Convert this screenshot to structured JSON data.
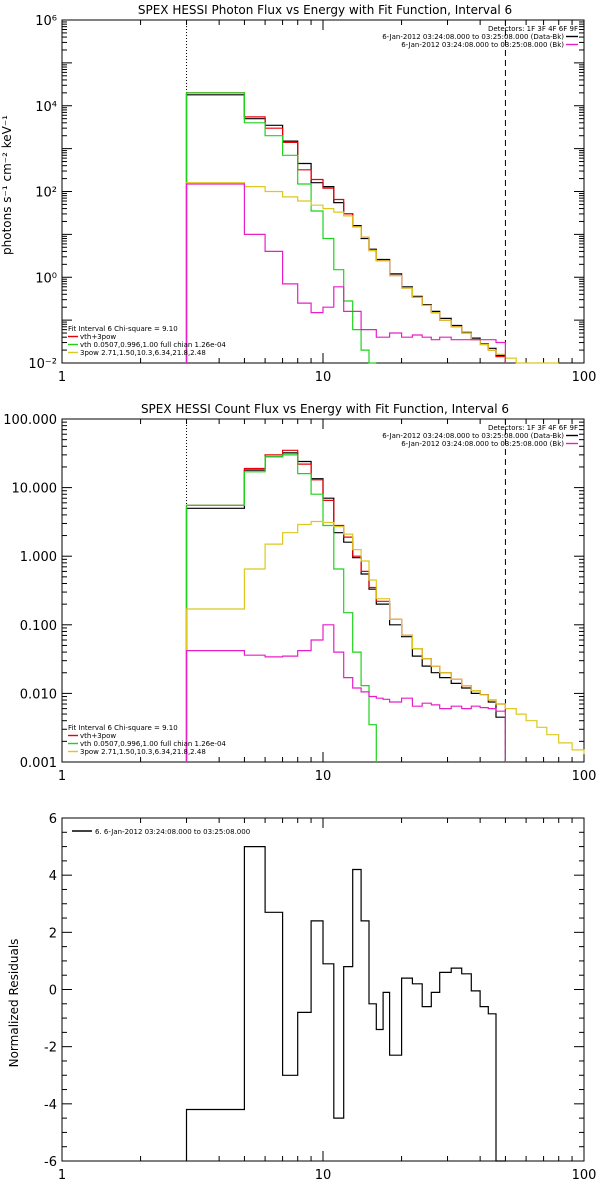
{
  "chart_data": [
    {
      "type": "line",
      "title": "SPEX HESSI Photon Flux vs Energy with Fit Function, Interval 6",
      "ylabel": "photons s⁻¹ cm⁻² keV⁻¹",
      "xscale": "log",
      "yscale": "log",
      "xlim": [
        1,
        100
      ],
      "ylim": [
        0.01,
        1000000
      ],
      "xticks": [
        {
          "v": 1,
          "label": "1"
        },
        {
          "v": 10,
          "label": "10"
        },
        {
          "v": 100,
          "label": "100"
        }
      ],
      "yticks": [
        {
          "v": 0.01,
          "label": "10⁻²"
        },
        {
          "v": 1,
          "label": "10⁰"
        },
        {
          "v": 100,
          "label": "10²"
        },
        {
          "v": 10000,
          "label": "10⁴"
        },
        {
          "v": 1000000,
          "label": "10⁶"
        }
      ],
      "vlines": [
        {
          "x": 3,
          "style": "dotted"
        },
        {
          "x": 50,
          "style": "dashed"
        }
      ],
      "legend_top": {
        "position": "top-right",
        "header": "Detectors: 1F 3F 4F 6F 9F",
        "entries": [
          {
            "text": "6-Jan-2012 03:24:08.000 to 03:25:08.000 (Data-Bk)",
            "color": "#000000"
          },
          {
            "text": "6-Jan-2012 03:24:08.000 to 03:25:08.000 (Bk)",
            "color": "#e81ec8"
          }
        ]
      },
      "legend_bottom": {
        "position": "bottom-left",
        "header": "Fit Interval 6   Chi-square = 9.10",
        "entries": [
          {
            "text": "vth+3pow",
            "color": "#e8000a"
          },
          {
            "text": "vth 0.0507,0.996,1.00   full chian 1.26e-04",
            "color": "#1ed21e"
          },
          {
            "text": "3pow 2.71,1.50,10.3,6.34,21.8,2.48",
            "color": "#dcc81e"
          }
        ]
      },
      "series": [
        {
          "name": "Data-Bk",
          "color": "#000000",
          "x": [
            3,
            4,
            5,
            6,
            7,
            8,
            9,
            10,
            11,
            12,
            13,
            14,
            15,
            16,
            18,
            20,
            22,
            24,
            26,
            28,
            31,
            34,
            37,
            40,
            43,
            46,
            50
          ],
          "y": [
            18000,
            18000,
            5000,
            3500,
            1500,
            450,
            160,
            130,
            55,
            30,
            16,
            8,
            4.5,
            2.6,
            1.2,
            0.6,
            0.36,
            0.23,
            0.16,
            0.11,
            0.075,
            0.052,
            0.038,
            0.028,
            0.022,
            0.015,
            0.01
          ]
        },
        {
          "name": "vth+3pow",
          "color": "#e8000a",
          "x": [
            3,
            4,
            5,
            6,
            7,
            8,
            9,
            10,
            11,
            12,
            13,
            14,
            15,
            16,
            18,
            20,
            22,
            24,
            26,
            28,
            31,
            34,
            37,
            40,
            43,
            46,
            50
          ],
          "y": [
            20000,
            20000,
            5500,
            3000,
            1400,
            320,
            190,
            120,
            65,
            30,
            15,
            8.5,
            4.2,
            2.4,
            1.1,
            0.56,
            0.34,
            0.22,
            0.15,
            0.1,
            0.07,
            0.05,
            0.035,
            0.027,
            0.02,
            0.014,
            0.01
          ]
        },
        {
          "name": "vth",
          "color": "#1ed21e",
          "x": [
            3,
            4,
            5,
            6,
            7,
            8,
            9,
            10,
            11,
            12,
            13,
            14,
            15,
            16
          ],
          "y": [
            20000,
            20000,
            4000,
            2000,
            700,
            150,
            35,
            8,
            1.5,
            0.28,
            0.06,
            0.02,
            0.01,
            0.01
          ]
        },
        {
          "name": "3pow",
          "color": "#dcc81e",
          "x": [
            3,
            4,
            5,
            6,
            7,
            8,
            9,
            10,
            11,
            12,
            13,
            14,
            15,
            16,
            18,
            20,
            22,
            24,
            26,
            28,
            31,
            34,
            37,
            40,
            43,
            46,
            50,
            55,
            60,
            66,
            72,
            80
          ],
          "y": [
            160,
            160,
            130,
            100,
            75,
            60,
            48,
            40,
            33,
            27,
            15,
            8.5,
            4.2,
            2.4,
            1.1,
            0.56,
            0.34,
            0.22,
            0.15,
            0.1,
            0.07,
            0.05,
            0.035,
            0.027,
            0.02,
            0.016,
            0.013,
            0.01,
            0.008,
            0.007,
            0.006,
            0.006
          ]
        },
        {
          "name": "Bk",
          "color": "#e81ec8",
          "x": [
            3,
            4,
            5,
            6,
            7,
            8,
            9,
            10,
            11,
            12,
            14,
            16,
            18,
            20,
            22,
            24,
            26,
            28,
            31,
            34,
            37,
            40,
            43,
            46,
            50
          ],
          "y": [
            150,
            150,
            10,
            4,
            0.7,
            0.25,
            0.15,
            0.2,
            0.6,
            0.16,
            0.06,
            0.04,
            0.05,
            0.04,
            0.045,
            0.04,
            0.035,
            0.04,
            0.035,
            0.035,
            0.035,
            0.035,
            0.035,
            0.03,
            0.01
          ]
        }
      ]
    },
    {
      "type": "line",
      "title": "SPEX HESSI Count Flux vs Energy with Fit Function, Interval 6",
      "xscale": "log",
      "yscale": "log",
      "xlim": [
        1,
        100
      ],
      "ylim": [
        0.001,
        100
      ],
      "xticks": [
        {
          "v": 1,
          "label": "1"
        },
        {
          "v": 10,
          "label": "10"
        },
        {
          "v": 100,
          "label": "100"
        }
      ],
      "yticks": [
        {
          "v": 0.001,
          "label": "0.001"
        },
        {
          "v": 0.01,
          "label": "0.010"
        },
        {
          "v": 0.1,
          "label": "0.100"
        },
        {
          "v": 1,
          "label": "1.000"
        },
        {
          "v": 10,
          "label": "10.000"
        },
        {
          "v": 100,
          "label": "100.000"
        }
      ],
      "vlines": [
        {
          "x": 3,
          "style": "dotted"
        },
        {
          "x": 50,
          "style": "dashed"
        }
      ],
      "legend_top": {
        "position": "top-right",
        "header": "Detectors: 1F 3F 4F 6F 9F",
        "entries": [
          {
            "text": "6-Jan-2012 03:24:08.000 to 03:25:08.000 (Data-Bk)",
            "color": "#000000"
          },
          {
            "text": "6-Jan-2012 03:24:08.000 to 03:25:08.000 (Bk)",
            "color": "#e81ec8"
          }
        ]
      },
      "legend_bottom": {
        "position": "bottom-left",
        "header": "Fit Interval 6   Chi-square = 9.10",
        "entries": [
          {
            "text": "vth+3pow",
            "color": "#e8000a"
          },
          {
            "text": "vth 0.0507,0.996,1.00   full chian 1.26e-04",
            "color": "#1ed21e"
          },
          {
            "text": "3pow 2.71,1.50,10.3,6.34,21.8,2.48",
            "color": "#dcc81e"
          }
        ]
      },
      "series": [
        {
          "name": "Data-Bk",
          "color": "#000000",
          "x": [
            3,
            4,
            5,
            6,
            7,
            8,
            9,
            10,
            11,
            12,
            13,
            14,
            15,
            16,
            18,
            20,
            22,
            24,
            26,
            28,
            31,
            34,
            37,
            40,
            43,
            46,
            50
          ],
          "y": [
            5,
            5,
            18,
            28,
            32,
            24,
            13.5,
            7,
            2.2,
            1.6,
            0.95,
            0.55,
            0.33,
            0.2,
            0.1,
            0.067,
            0.035,
            0.025,
            0.02,
            0.017,
            0.014,
            0.012,
            0.01,
            0.0095,
            0.0075,
            0.0045,
            0.001
          ]
        },
        {
          "name": "vth+3pow",
          "color": "#e8000a",
          "x": [
            3,
            4,
            5,
            6,
            7,
            8,
            9,
            10,
            11,
            12,
            13,
            14,
            15,
            16,
            18,
            20,
            22,
            24,
            26,
            28,
            31,
            34,
            37,
            40,
            43,
            46,
            50
          ],
          "y": [
            5.5,
            5.5,
            19,
            30,
            35,
            22,
            13,
            6.5,
            2.8,
            1.9,
            1,
            0.6,
            0.35,
            0.22,
            0.12,
            0.07,
            0.045,
            0.032,
            0.025,
            0.02,
            0.016,
            0.013,
            0.011,
            0.0095,
            0.008,
            0.007,
            0.005
          ]
        },
        {
          "name": "vth",
          "color": "#1ed21e",
          "x": [
            3,
            4,
            5,
            6,
            7,
            8,
            9,
            10,
            11,
            12,
            13,
            14,
            15,
            16
          ],
          "y": [
            5.5,
            5.5,
            17,
            28,
            30,
            16,
            8,
            2.8,
            0.65,
            0.15,
            0.04,
            0.013,
            0.0035,
            0.001
          ]
        },
        {
          "name": "3pow",
          "color": "#dcc81e",
          "x": [
            3,
            4,
            5,
            6,
            7,
            8,
            9,
            10,
            11,
            12,
            13,
            14,
            15,
            16,
            18,
            20,
            22,
            24,
            26,
            28,
            31,
            34,
            37,
            40,
            43,
            46,
            50,
            55,
            60,
            66,
            72,
            80,
            90,
            100
          ],
          "y": [
            0.17,
            0.17,
            0.65,
            1.5,
            2.2,
            2.9,
            3.2,
            3.1,
            2.7,
            2.1,
            1.25,
            0.85,
            0.45,
            0.24,
            0.12,
            0.07,
            0.045,
            0.032,
            0.025,
            0.02,
            0.016,
            0.013,
            0.011,
            0.0095,
            0.008,
            0.007,
            0.006,
            0.005,
            0.004,
            0.0032,
            0.0025,
            0.0019,
            0.0015,
            0.0013
          ]
        },
        {
          "name": "Bk",
          "color": "#e81ec8",
          "x": [
            3,
            4,
            5,
            6,
            7,
            8,
            9,
            10,
            11,
            12,
            13,
            14,
            15,
            16,
            17,
            18,
            20,
            22,
            24,
            26,
            28,
            31,
            34,
            37,
            40,
            43,
            46,
            50
          ],
          "y": [
            0.042,
            0.042,
            0.036,
            0.034,
            0.035,
            0.042,
            0.06,
            0.1,
            0.04,
            0.017,
            0.012,
            0.0105,
            0.009,
            0.0085,
            0.0082,
            0.0075,
            0.0085,
            0.0065,
            0.0072,
            0.0068,
            0.006,
            0.0065,
            0.006,
            0.0065,
            0.0062,
            0.006,
            0.0055,
            0.001
          ]
        }
      ]
    },
    {
      "type": "line",
      "ylabel": "Normalized Residuals",
      "xscale": "log",
      "yscale": "linear",
      "xlim": [
        1,
        100
      ],
      "ylim": [
        -6,
        6
      ],
      "xticks": [
        {
          "v": 1,
          "label": "1"
        },
        {
          "v": 10,
          "label": "10"
        },
        {
          "v": 100,
          "label": "100"
        }
      ],
      "yticks": [
        {
          "v": -6,
          "label": "-6"
        },
        {
          "v": -4,
          "label": "-4"
        },
        {
          "v": -2,
          "label": "-2"
        },
        {
          "v": 0,
          "label": "0"
        },
        {
          "v": 2,
          "label": "2"
        },
        {
          "v": 4,
          "label": "4"
        },
        {
          "v": 6,
          "label": "6"
        }
      ],
      "legend_top": {
        "position": "top-left",
        "entries": [
          {
            "text": "6.  6-Jan-2012 03:24:08.000 to 03:25:08.000",
            "color": "#000000"
          }
        ]
      },
      "series": [
        {
          "name": "6.  6-Jan-2012 03:24:08.000 to 03:25:08.000",
          "color": "#000000",
          "x": [
            3,
            4,
            5,
            6,
            7,
            8,
            9,
            10,
            11,
            12,
            13,
            14,
            15,
            16,
            17,
            18,
            20,
            22,
            24,
            26,
            28,
            31,
            34,
            37,
            40,
            43,
            46,
            50
          ],
          "y": [
            -4.2,
            -4.2,
            5,
            2.7,
            -3,
            -0.8,
            2.4,
            0.9,
            -4.5,
            0.8,
            4.2,
            2.4,
            -0.5,
            -1.4,
            -0.1,
            -2.3,
            0.4,
            0.2,
            -0.6,
            -0.1,
            0.6,
            0.75,
            0.55,
            -0.05,
            -0.6,
            -0.85,
            -6,
            -6
          ]
        }
      ]
    }
  ]
}
